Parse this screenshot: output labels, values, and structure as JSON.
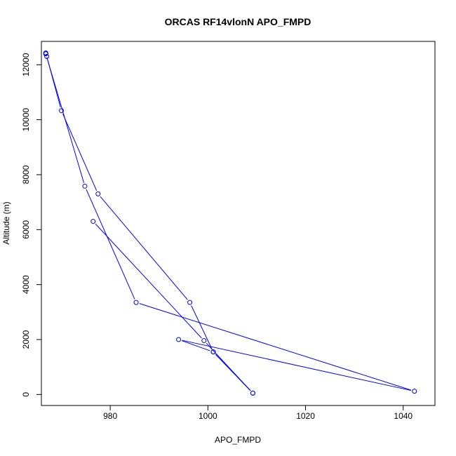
{
  "chart_data": {
    "type": "line",
    "title": "ORCAS RF14vlonN APO_FMPD",
    "xlabel": "APO_FMPD",
    "ylabel": "Altitude (m)",
    "xlim": [
      965.9,
      1046.5
    ],
    "ylim": [
      -400,
      12850
    ],
    "x_ticks": [
      980,
      1000,
      1020,
      1040
    ],
    "y_ticks": [
      0,
      2000,
      4000,
      6000,
      8000,
      10000,
      12000
    ],
    "grid": false,
    "line_color": "#0000ff",
    "marker": "open-circle",
    "series": [
      {
        "points": [
          {
            "x": 1009.2,
            "y": 50
          },
          {
            "x": 1001.1,
            "y": 1550
          },
          {
            "x": 996.3,
            "y": 3350
          },
          {
            "x": 977.5,
            "y": 7300
          },
          {
            "x": 970.0,
            "y": 10330
          },
          {
            "x": 967.0,
            "y": 12300
          },
          {
            "x": 966.8,
            "y": 12400
          },
          {
            "x": 966.8,
            "y": 12430
          },
          {
            "x": 966.8,
            "y": 12400
          },
          {
            "x": 974.8,
            "y": 7580
          },
          {
            "x": 985.3,
            "y": 3350
          },
          {
            "x": 1042.3,
            "y": 120
          },
          {
            "x": 994.0,
            "y": 2000
          },
          {
            "x": 1001.1,
            "y": 1550
          },
          {
            "x": 1009.2,
            "y": 50
          },
          {
            "x": 999.2,
            "y": 1960
          },
          {
            "x": 976.5,
            "y": 6300
          }
        ]
      }
    ]
  }
}
